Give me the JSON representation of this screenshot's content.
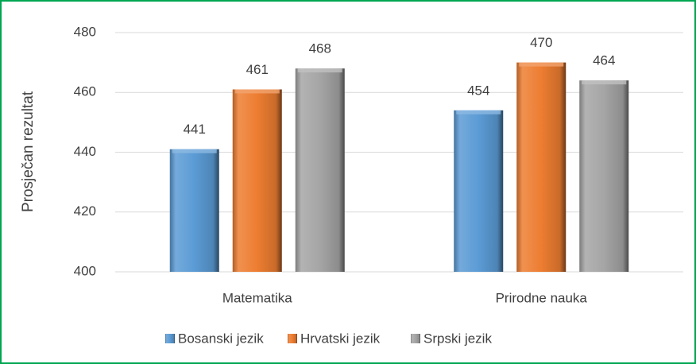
{
  "chart_data": {
    "type": "bar",
    "y_label": "Prosječan rezultat",
    "categories": [
      "Matematika",
      "Prirodne nauka"
    ],
    "series": [
      {
        "name": "Bosanski jezik",
        "color": "#5b9bd5",
        "values": [
          441,
          454
        ]
      },
      {
        "name": "Hrvatski jezik",
        "color": "#ed7d31",
        "values": [
          461,
          470
        ]
      },
      {
        "name": "Srpski jezik",
        "color": "#a5a5a5",
        "values": [
          468,
          464
        ]
      }
    ],
    "ylim": [
      400,
      480
    ],
    "yticks": [
      400,
      420,
      440,
      460,
      480
    ],
    "grid": true,
    "legend": "bottom",
    "data_labels": true
  }
}
